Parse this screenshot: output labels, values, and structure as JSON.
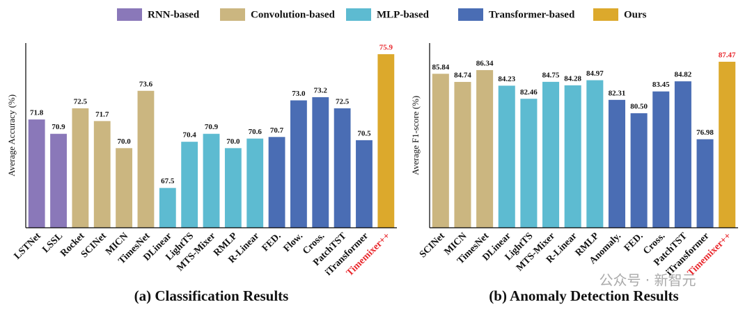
{
  "legend": [
    {
      "name": "RNN-based",
      "color": "#8a78b9"
    },
    {
      "name": "Convolution-based",
      "color": "#cbb680"
    },
    {
      "name": "MLP-based",
      "color": "#5dbbd1"
    },
    {
      "name": "Transformer-based",
      "color": "#4a6db4"
    },
    {
      "name": "Ours",
      "color": "#dca92c"
    }
  ],
  "watermark": "公众号 · 新智元",
  "chart_data": [
    {
      "type": "bar",
      "title": "(a) Classification Results",
      "y_label": "Average Accuracy (%)",
      "categories": [
        "LSTNet",
        "LSSL",
        "Rocket",
        "SCINet",
        "MICN",
        "TimesNet",
        "DLinear",
        "LightTS",
        "MTS-Mixer",
        "RMLP",
        "R-Linear",
        "FED.",
        "Flow.",
        "Cross.",
        "PatchTST",
        "iTransformer",
        "Timemixer++"
      ],
      "values": [
        71.8,
        70.9,
        72.5,
        71.7,
        70.0,
        73.6,
        67.5,
        70.4,
        70.9,
        70.0,
        70.6,
        70.7,
        73.0,
        73.2,
        72.5,
        70.5,
        75.9
      ],
      "value_labels": [
        "71.8",
        "70.9",
        "72.5",
        "71.7",
        "70.0",
        "73.6",
        "67.5",
        "70.4",
        "70.9",
        "70.0",
        "70.6",
        "70.7",
        "73.0",
        "73.2",
        "72.5",
        "70.5",
        "75.9"
      ],
      "colors": [
        "#8a78b9",
        "#8a78b9",
        "#cbb680",
        "#cbb680",
        "#cbb680",
        "#cbb680",
        "#5dbbd1",
        "#5dbbd1",
        "#5dbbd1",
        "#5dbbd1",
        "#5dbbd1",
        "#4a6db4",
        "#4a6db4",
        "#4a6db4",
        "#4a6db4",
        "#4a6db4",
        "#dca92c"
      ],
      "ylim": [
        65,
        76.6
      ]
    },
    {
      "type": "bar",
      "title": "(b) Anomaly Detection Results",
      "y_label": "Average F1-score (%)",
      "categories": [
        "SCINet",
        "MICN",
        "TimesNet",
        "DLinear",
        "LightTS",
        "MTS-Mixer",
        "R-Linear",
        "RMLP",
        "Anomaly.",
        "FED.",
        "Cross.",
        "PatchTST",
        "iTransformer",
        "Timemixer++"
      ],
      "values": [
        85.84,
        84.74,
        86.34,
        84.23,
        82.46,
        84.75,
        84.28,
        84.97,
        82.31,
        80.5,
        83.45,
        84.82,
        76.98,
        87.47
      ],
      "value_labels": [
        "85.84",
        "84.74",
        "86.34",
        "84.23",
        "82.46",
        "84.75",
        "84.28",
        "84.97",
        "82.31",
        "80.50",
        "83.45",
        "84.82",
        "76.98",
        "87.47"
      ],
      "colors": [
        "#cbb680",
        "#cbb680",
        "#cbb680",
        "#5dbbd1",
        "#5dbbd1",
        "#5dbbd1",
        "#5dbbd1",
        "#5dbbd1",
        "#4a6db4",
        "#4a6db4",
        "#4a6db4",
        "#4a6db4",
        "#4a6db4",
        "#dca92c"
      ],
      "ylim": [
        65,
        90
      ]
    }
  ]
}
